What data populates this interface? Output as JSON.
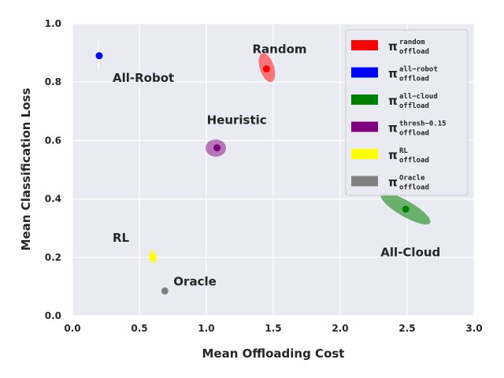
{
  "chart_data": {
    "type": "scatter",
    "title": "",
    "xlabel": "Mean Offloading Cost",
    "ylabel": "Mean Classification Loss",
    "xlim": [
      0.0,
      3.0
    ],
    "ylim": [
      0.0,
      1.0
    ],
    "xticks": [
      "0.0",
      "0.5",
      "1.0",
      "1.5",
      "2.0",
      "2.5",
      "3.0"
    ],
    "yticks": [
      "0.0",
      "0.2",
      "0.4",
      "0.6",
      "0.8",
      "1.0"
    ],
    "grid": true,
    "legend_position": "top-right",
    "points": [
      {
        "id": "random",
        "label": "Random",
        "legend_sup": "random",
        "color": "#ff0000",
        "x": 1.45,
        "y": 0.845
      },
      {
        "id": "all-robot",
        "label": "All-Robot",
        "legend_sup": "all−robot",
        "color": "#0000ff",
        "x": 0.2,
        "y": 0.89
      },
      {
        "id": "all-cloud",
        "label": "All-Cloud",
        "legend_sup": "all−cloud",
        "color": "#008000",
        "x": 2.49,
        "y": 0.365
      },
      {
        "id": "thresh",
        "label": "Heuristic",
        "legend_sup": "thresh−0.15",
        "color": "#800080",
        "x": 1.08,
        "y": 0.575
      },
      {
        "id": "rl",
        "label": "RL",
        "legend_sup": "RL",
        "color": "#ffff00",
        "x": 0.6,
        "y": 0.2
      },
      {
        "id": "oracle",
        "label": "Oracle",
        "legend_sup": "Oracle",
        "color": "#808080",
        "x": 0.69,
        "y": 0.085
      }
    ],
    "legend_symbol": "π",
    "legend_subscript": "offload"
  }
}
